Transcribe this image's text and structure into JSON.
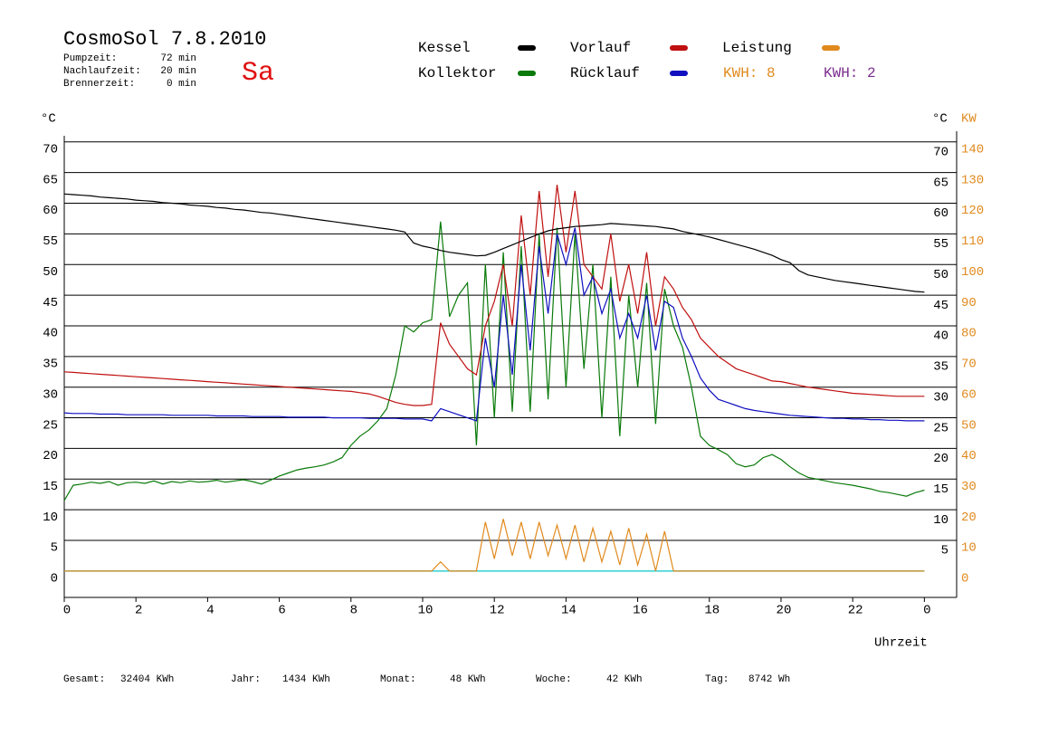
{
  "header": {
    "title": "CosmoSol 7.8.2010",
    "day": "Sa",
    "times": [
      {
        "label": "Pumpzeit:",
        "value": "72 min"
      },
      {
        "label": "Nachlaufzeit:",
        "value": "20 min"
      },
      {
        "label": "Brennerzeit:",
        "value": "0 min"
      }
    ],
    "kwh": [
      {
        "text": "KWH: 8",
        "color": "#e08a1e"
      },
      {
        "text": "KWH: 2",
        "color": "#7b2d8f"
      }
    ]
  },
  "footer": {
    "stats": [
      {
        "label": "Gesamt:",
        "value": "32404 KWh"
      },
      {
        "label": "Jahr:",
        "value": "1434 KWh"
      },
      {
        "label": "Monat:",
        "value": "48 KWh"
      },
      {
        "label": "Woche:",
        "value": "42 KWh"
      },
      {
        "label": "Tag:",
        "value": "8742 Wh"
      }
    ]
  },
  "chart_data": {
    "type": "line",
    "x_label": "Uhrzeit",
    "y_label": "°C",
    "y2_label": "KW",
    "grid": true,
    "xlim": [
      0,
      24.9
    ],
    "xticks": [
      0,
      2,
      4,
      6,
      8,
      10,
      12,
      14,
      16,
      18,
      20,
      22,
      {
        "value": 24,
        "label": "0"
      }
    ],
    "ylim": [
      -4.3,
      71
    ],
    "yticks": [
      0,
      5,
      10,
      15,
      20,
      25,
      30,
      35,
      40,
      45,
      50,
      55,
      60,
      65,
      70
    ],
    "y2lim": [
      -8.6,
      142
    ],
    "y2ticks": [
      0,
      10,
      20,
      30,
      40,
      50,
      60,
      70,
      80,
      90,
      100,
      110,
      120,
      130,
      140
    ],
    "x": [
      0,
      0.25,
      0.5,
      0.75,
      1,
      1.25,
      1.5,
      1.75,
      2,
      2.25,
      2.5,
      2.75,
      3,
      3.25,
      3.5,
      3.75,
      4,
      4.25,
      4.5,
      4.75,
      5,
      5.25,
      5.5,
      5.75,
      6,
      6.25,
      6.5,
      6.75,
      7,
      7.25,
      7.5,
      7.75,
      8,
      8.25,
      8.5,
      8.75,
      9,
      9.25,
      9.5,
      9.75,
      10,
      10.25,
      10.5,
      10.75,
      11,
      11.25,
      11.5,
      11.75,
      12,
      12.25,
      12.5,
      12.75,
      13,
      13.25,
      13.5,
      13.75,
      14,
      14.25,
      14.5,
      14.75,
      15,
      15.25,
      15.5,
      15.75,
      16,
      16.25,
      16.5,
      16.75,
      17,
      17.25,
      17.5,
      17.75,
      18,
      18.25,
      18.5,
      18.75,
      19,
      19.25,
      19.5,
      19.75,
      20,
      20.25,
      20.5,
      20.75,
      21,
      21.25,
      21.5,
      21.75,
      22,
      22.25,
      22.5,
      22.75,
      23,
      23.25,
      23.5,
      23.75,
      24
    ],
    "series": [
      {
        "name": "Kessel",
        "color": "#000000",
        "values": [
          61.5,
          61.4,
          61.3,
          61.2,
          61.0,
          60.9,
          60.8,
          60.7,
          60.5,
          60.4,
          60.3,
          60.1,
          60.0,
          59.9,
          59.7,
          59.6,
          59.5,
          59.3,
          59.2,
          59.0,
          58.9,
          58.7,
          58.5,
          58.4,
          58.2,
          58.0,
          57.8,
          57.6,
          57.4,
          57.2,
          57.0,
          56.8,
          56.6,
          56.4,
          56.2,
          56.0,
          55.8,
          55.6,
          55.3,
          53.5,
          53.0,
          52.7,
          52.3,
          52.0,
          51.8,
          51.6,
          51.4,
          51.5,
          52.0,
          52.6,
          53.2,
          53.8,
          54.4,
          55.0,
          55.5,
          55.8,
          56.0,
          56.2,
          56.3,
          56.4,
          56.5,
          56.7,
          56.6,
          56.5,
          56.4,
          56.3,
          56.2,
          56.0,
          55.8,
          55.4,
          55.1,
          54.8,
          54.5,
          54.1,
          53.7,
          53.3,
          52.9,
          52.5,
          52.0,
          51.5,
          50.8,
          50.3,
          49.0,
          48.3,
          48.0,
          47.7,
          47.4,
          47.2,
          47.0,
          46.8,
          46.6,
          46.4,
          46.2,
          46.0,
          45.8,
          45.6,
          45.5
        ]
      },
      {
        "name": "Kollektor",
        "color": "#0a7a0a",
        "values": [
          11.5,
          14.0,
          14.2,
          14.5,
          14.3,
          14.6,
          14.0,
          14.4,
          14.5,
          14.3,
          14.7,
          14.2,
          14.6,
          14.4,
          14.7,
          14.5,
          14.6,
          14.8,
          14.5,
          14.7,
          14.9,
          14.6,
          14.2,
          14.8,
          15.5,
          16.0,
          16.5,
          16.8,
          17.0,
          17.3,
          17.8,
          18.5,
          20.5,
          22.0,
          23.0,
          24.5,
          26.5,
          32.0,
          40.0,
          39.0,
          40.5,
          41.0,
          57.0,
          41.5,
          45.0,
          47.0,
          20.5,
          50.0,
          25.0,
          52.0,
          26.0,
          53.0,
          26.0,
          55.0,
          28.0,
          56.0,
          30.0,
          55.0,
          33.0,
          50.0,
          25.0,
          48.0,
          22.0,
          45.0,
          30.0,
          47.0,
          24.0,
          46.0,
          40.0,
          36.5,
          30.0,
          22.0,
          20.5,
          19.8,
          19.0,
          17.5,
          17.0,
          17.3,
          18.5,
          19.0,
          18.2,
          17.0,
          16.0,
          15.3,
          15.0,
          14.7,
          14.4,
          14.2,
          14.0,
          13.7,
          13.4,
          13.0,
          12.8,
          12.5,
          12.2,
          12.8,
          13.2
        ]
      },
      {
        "name": "Vorlauf",
        "color": "#c01010",
        "values": [
          32.5,
          32.4,
          32.3,
          32.2,
          32.1,
          32.0,
          31.9,
          31.8,
          31.7,
          31.6,
          31.5,
          31.4,
          31.3,
          31.2,
          31.1,
          31.0,
          30.9,
          30.8,
          30.7,
          30.6,
          30.5,
          30.4,
          30.3,
          30.2,
          30.1,
          30.0,
          29.9,
          29.8,
          29.7,
          29.6,
          29.5,
          29.4,
          29.3,
          29.1,
          28.9,
          28.5,
          28.0,
          27.5,
          27.2,
          27.0,
          27.0,
          27.2,
          40.5,
          37.0,
          35.0,
          33.0,
          32.0,
          40.0,
          44.0,
          50.0,
          40.0,
          58.0,
          45.0,
          62.0,
          48.0,
          63.0,
          52.0,
          62.0,
          50.0,
          48.0,
          46.0,
          55.0,
          44.0,
          50.0,
          42.0,
          52.0,
          40.0,
          48.0,
          46.0,
          43.0,
          41.0,
          38.0,
          36.5,
          35.0,
          34.0,
          33.0,
          32.5,
          32.0,
          31.5,
          31.0,
          30.9,
          30.6,
          30.3,
          30.0,
          29.8,
          29.6,
          29.4,
          29.2,
          29.0,
          28.9,
          28.8,
          28.7,
          28.6,
          28.5,
          28.5,
          28.5,
          28.5
        ]
      },
      {
        "name": "Rücklauf",
        "color": "#1010c0",
        "values": [
          25.8,
          25.7,
          25.7,
          25.7,
          25.6,
          25.6,
          25.6,
          25.5,
          25.5,
          25.5,
          25.5,
          25.5,
          25.4,
          25.4,
          25.4,
          25.4,
          25.4,
          25.3,
          25.3,
          25.3,
          25.3,
          25.2,
          25.2,
          25.2,
          25.2,
          25.1,
          25.1,
          25.1,
          25.1,
          25.1,
          25.0,
          25.0,
          25.0,
          25.0,
          24.9,
          24.9,
          24.9,
          24.9,
          24.8,
          24.8,
          24.8,
          24.5,
          26.5,
          26.0,
          25.5,
          25.0,
          24.5,
          38.0,
          30.0,
          45.0,
          32.0,
          50.0,
          36.0,
          53.0,
          42.0,
          55.0,
          50.0,
          56.0,
          45.0,
          48.0,
          42.0,
          46.0,
          38.0,
          42.0,
          38.0,
          45.0,
          36.0,
          44.0,
          43.0,
          38.0,
          35.0,
          31.5,
          29.5,
          28.0,
          27.5,
          27.0,
          26.5,
          26.2,
          26.0,
          25.8,
          25.6,
          25.4,
          25.3,
          25.2,
          25.1,
          25.0,
          24.9,
          24.9,
          24.8,
          24.8,
          24.7,
          24.7,
          24.6,
          24.6,
          24.5,
          24.5,
          24.5
        ]
      },
      {
        "name": "Leistung",
        "color": "#e08a1e",
        "axis": "y2",
        "values": [
          0,
          0,
          0,
          0,
          0,
          0,
          0,
          0,
          0,
          0,
          0,
          0,
          0,
          0,
          0,
          0,
          0,
          0,
          0,
          0,
          0,
          0,
          0,
          0,
          0,
          0,
          0,
          0,
          0,
          0,
          0,
          0,
          0,
          0,
          0,
          0,
          0,
          0,
          0,
          0,
          0,
          0,
          3,
          0,
          0,
          0,
          0,
          16,
          4,
          17,
          5,
          16,
          4,
          16,
          5,
          15,
          4,
          15,
          3,
          14,
          3,
          13,
          2,
          14,
          2,
          12,
          0,
          13,
          0,
          0,
          0,
          0,
          0,
          0,
          0,
          0,
          0,
          0,
          0,
          0,
          0,
          0,
          0,
          0,
          0,
          0,
          0,
          0,
          0,
          0,
          0,
          0,
          0,
          0,
          0,
          0,
          0
        ]
      }
    ]
  }
}
